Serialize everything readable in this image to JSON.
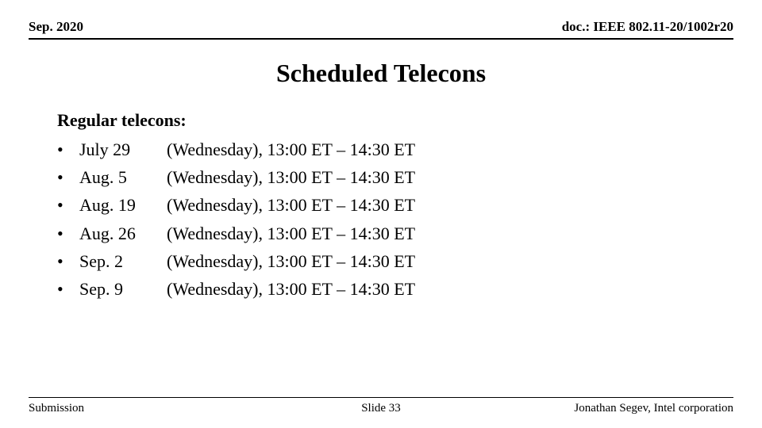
{
  "header": {
    "left": "Sep. 2020",
    "right": "doc.: IEEE 802.11-20/1002r20"
  },
  "title": "Scheduled Telecons",
  "subheading": "Regular telecons:",
  "bullet_char": "•",
  "telecons": [
    {
      "date": "July 29",
      "details": "(Wednesday), 13:00 ET – 14:30 ET"
    },
    {
      "date": "Aug. 5",
      "details": "(Wednesday), 13:00 ET – 14:30 ET"
    },
    {
      "date": "Aug. 19",
      "details": "(Wednesday), 13:00 ET – 14:30 ET"
    },
    {
      "date": "Aug. 26",
      "details": "(Wednesday), 13:00 ET – 14:30 ET"
    },
    {
      "date": "Sep. 2",
      "details": "(Wednesday), 13:00 ET – 14:30 ET"
    },
    {
      "date": "Sep. 9",
      "details": "(Wednesday), 13:00 ET – 14:30 ET"
    }
  ],
  "footer": {
    "left": "Submission",
    "center": "Slide 33",
    "right": "Jonathan Segev, Intel corporation"
  },
  "colors": {
    "background": "#ffffff",
    "text": "#000000",
    "rule": "#000000"
  },
  "typography": {
    "family": "Times New Roman",
    "header_size_pt": 13,
    "title_size_pt": 24,
    "body_size_pt": 17,
    "footer_size_pt": 11
  }
}
